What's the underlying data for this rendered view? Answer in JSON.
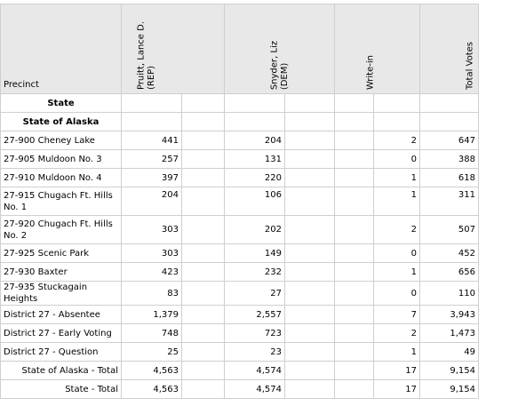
{
  "headers": {
    "precinct": "Precinct",
    "cand1": [
      "Pruitt, Lance D.",
      "(REP)"
    ],
    "cand2": [
      "Snyder, Liz",
      "(DEM)"
    ],
    "writein": "Write-in",
    "total": "Total Votes"
  },
  "sections": {
    "state": "State",
    "state_of_alaska": "State of Alaska"
  },
  "rows": [
    {
      "name": "27-900 Cheney Lake",
      "pruitt": "441",
      "snyder": "204",
      "writein": "2",
      "total": "647"
    },
    {
      "name": "27-905 Muldoon No. 3",
      "pruitt": "257",
      "snyder": "131",
      "writein": "0",
      "total": "388"
    },
    {
      "name": "27-910 Muldoon No. 4",
      "pruitt": "397",
      "snyder": "220",
      "writein": "1",
      "total": "618"
    },
    {
      "name": "27-915 Chugach Ft. Hills No. 1",
      "pruitt": "204",
      "snyder": "106",
      "writein": "1",
      "total": "311"
    },
    {
      "name": "27-920 Chugach Ft. Hills No. 2",
      "pruitt": "303",
      "snyder": "202",
      "writein": "2",
      "total": "507"
    },
    {
      "name": "27-925 Scenic Park",
      "pruitt": "303",
      "snyder": "149",
      "writein": "0",
      "total": "452"
    },
    {
      "name": "27-930 Baxter",
      "pruitt": "423",
      "snyder": "232",
      "writein": "1",
      "total": "656"
    },
    {
      "name": "27-935 Stuckagain Heights",
      "pruitt": "83",
      "snyder": "27",
      "writein": "0",
      "total": "110"
    },
    {
      "name": "District 27 - Absentee",
      "pruitt": "1,379",
      "snyder": "2,557",
      "writein": "7",
      "total": "3,943"
    },
    {
      "name": "District 27 - Early Voting",
      "pruitt": "748",
      "snyder": "723",
      "writein": "2",
      "total": "1,473"
    },
    {
      "name": "District 27 - Question",
      "pruitt": "25",
      "snyder": "23",
      "writein": "1",
      "total": "49"
    }
  ],
  "totals": [
    {
      "name": "State of Alaska - Total",
      "pruitt": "4,563",
      "snyder": "4,574",
      "writein": "17",
      "total": "9,154"
    },
    {
      "name": "State - Total",
      "pruitt": "4,563",
      "snyder": "4,574",
      "writein": "17",
      "total": "9,154"
    }
  ]
}
